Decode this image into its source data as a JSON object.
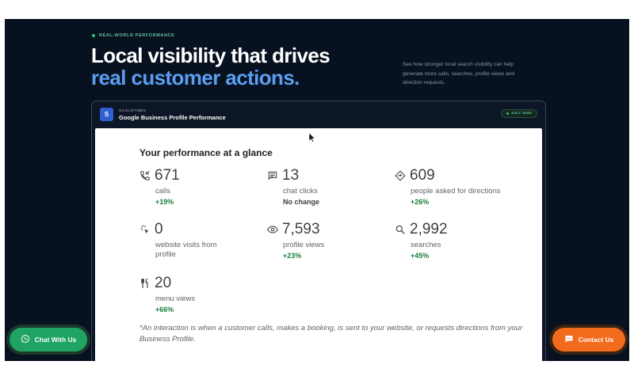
{
  "section": {
    "eyebrow": "REAL-WORLD PERFORMANCE",
    "headline_line1": "Local visibility that drives",
    "headline_line2": "real customer actions.",
    "description": "See how stronger local search visibility can help generate more calls, searches, profile views and direction requests."
  },
  "card": {
    "brand_initial": "S",
    "brand_name": "SCALIFYNEX",
    "title": "Google Business Profile Performance",
    "date_badge": "JULY 2025"
  },
  "panel": {
    "title": "Your performance at a glance",
    "metrics": [
      {
        "icon": "phone-icon",
        "value": "671",
        "label": "calls",
        "change": "+19%"
      },
      {
        "icon": "chat-icon",
        "value": "13",
        "label": "chat clicks",
        "change": "No change"
      },
      {
        "icon": "directions-icon",
        "value": "609",
        "label": "people asked for directions",
        "change": "+26%"
      },
      {
        "icon": "click-icon",
        "value": "0",
        "label": "website visits from profile",
        "change": ""
      },
      {
        "icon": "eye-icon",
        "value": "7,593",
        "label": "profile views",
        "change": "+23%"
      },
      {
        "icon": "search-icon",
        "value": "2,992",
        "label": "searches",
        "change": "+45%"
      },
      {
        "icon": "menu-icon",
        "value": "20",
        "label": "menu views",
        "change": "+66%"
      }
    ],
    "footnote": "*An interaction is when a customer calls, makes a booking, is sent to your website, or requests directions from your Business Profile."
  },
  "floating": {
    "chat_label": "Chat With Us",
    "contact_label": "Contact Us"
  },
  "colors": {
    "background": "#081120",
    "accent_blue": "#5b9ef0",
    "positive_green": "#188038",
    "whatsapp_green": "#1fa464",
    "contact_orange": "#f26a1b"
  }
}
